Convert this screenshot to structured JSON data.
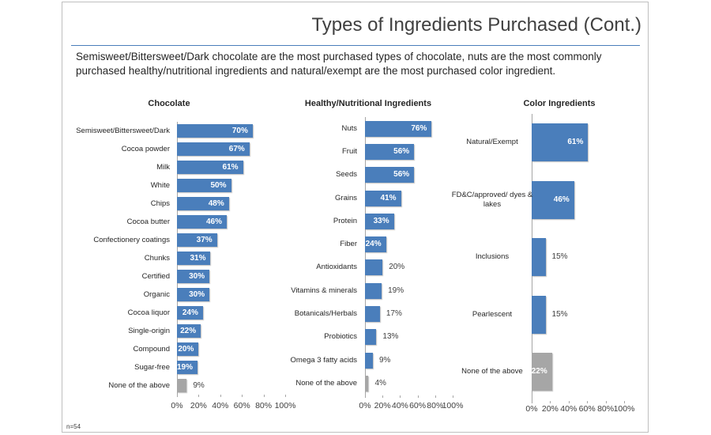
{
  "title": "Types of Ingredients Purchased (Cont.)",
  "subtitle": "Semisweet/Bittersweet/Dark chocolate are the most purchased types of chocolate, nuts are the most commonly purchased healthy/nutritional ingredients and natural/exempt are the most purchased color ingredient.",
  "footnote": "n=54",
  "chart_data": [
    {
      "type": "bar",
      "orientation": "horizontal",
      "title": "Chocolate",
      "categories": [
        "Semisweet/Bittersweet/Dark",
        "Cocoa powder",
        "Milk",
        "White",
        "Chips",
        "Cocoa butter",
        "Confectionery coatings",
        "Chunks",
        "Certified",
        "Organic",
        "Cocoa liquor",
        "Single-origin",
        "Compound",
        "Sugar-free",
        "None of the above"
      ],
      "values": [
        70,
        67,
        61,
        50,
        48,
        46,
        37,
        31,
        30,
        30,
        24,
        22,
        20,
        19,
        9
      ],
      "value_labels": [
        "70%",
        "67%",
        "61%",
        "50%",
        "48%",
        "46%",
        "37%",
        "31%",
        "30%",
        "30%",
        "24%",
        "22%",
        "20%",
        "19%",
        "9%"
      ],
      "colors": [
        "#4a7ebb",
        "#4a7ebb",
        "#4a7ebb",
        "#4a7ebb",
        "#4a7ebb",
        "#4a7ebb",
        "#4a7ebb",
        "#4a7ebb",
        "#4a7ebb",
        "#4a7ebb",
        "#4a7ebb",
        "#4a7ebb",
        "#4a7ebb",
        "#4a7ebb",
        "#a6a6a6"
      ],
      "xlim": [
        0,
        100
      ],
      "xticks": [
        {
          "value": 0,
          "label": "0%"
        },
        {
          "value": 20,
          "label": "20%"
        },
        {
          "value": 40,
          "label": "40%"
        },
        {
          "value": 60,
          "label": "60%"
        },
        {
          "value": 80,
          "label": "80%"
        },
        {
          "value": 100,
          "label": "100%"
        }
      ]
    },
    {
      "type": "bar",
      "orientation": "horizontal",
      "title": "Healthy/Nutritional Ingredients",
      "categories": [
        "Nuts",
        "Fruit",
        "Seeds",
        "Grains",
        "Protein",
        "Fiber",
        "Antioxidants",
        "Vitamins & minerals",
        "Botanicals/Herbals",
        "Probiotics",
        "Omega 3 fatty acids",
        "None of the above"
      ],
      "values": [
        76,
        56,
        56,
        41,
        33,
        24,
        20,
        19,
        17,
        13,
        9,
        4
      ],
      "value_labels": [
        "76%",
        "56%",
        "56%",
        "41%",
        "33%",
        "24%",
        "20%",
        "19%",
        "17%",
        "13%",
        "9%",
        "4%"
      ],
      "colors": [
        "#4a7ebb",
        "#4a7ebb",
        "#4a7ebb",
        "#4a7ebb",
        "#4a7ebb",
        "#4a7ebb",
        "#4a7ebb",
        "#4a7ebb",
        "#4a7ebb",
        "#4a7ebb",
        "#4a7ebb",
        "#a6a6a6"
      ],
      "xlim": [
        0,
        100
      ],
      "xticks": [
        {
          "value": 0,
          "label": "0%"
        },
        {
          "value": 20,
          "label": "20%"
        },
        {
          "value": 40,
          "label": "40%"
        },
        {
          "value": 60,
          "label": "60%"
        },
        {
          "value": 80,
          "label": "80%"
        },
        {
          "value": 100,
          "label": "100%"
        }
      ]
    },
    {
      "type": "bar",
      "orientation": "horizontal",
      "title": "Color Ingredients",
      "categories": [
        "Natural/Exempt",
        "FD&C/approved/ dyes & lakes",
        "Inclusions",
        "Pearlescent",
        "None of the above"
      ],
      "values": [
        61,
        46,
        15,
        15,
        22
      ],
      "value_labels": [
        "61%",
        "46%",
        "15%",
        "15%",
        "22%"
      ],
      "colors": [
        "#4a7ebb",
        "#4a7ebb",
        "#4a7ebb",
        "#4a7ebb",
        "#a6a6a6"
      ],
      "xlim": [
        0,
        100
      ],
      "xticks": [
        {
          "value": 0,
          "label": "0%"
        },
        {
          "value": 20,
          "label": "20%"
        },
        {
          "value": 40,
          "label": "40%"
        },
        {
          "value": 60,
          "label": "60%"
        },
        {
          "value": 80,
          "label": "80%"
        },
        {
          "value": 100,
          "label": "100%"
        }
      ]
    }
  ]
}
